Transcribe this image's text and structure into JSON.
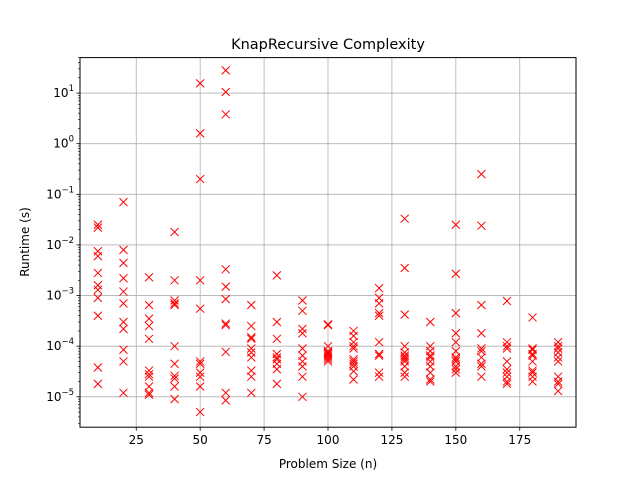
{
  "chart_data": {
    "type": "scatter",
    "title": "KnapRecursive Complexity",
    "xlabel": "Problem Size (n)",
    "ylabel": "Runtime (s)",
    "xlim": [
      3,
      197
    ],
    "ylim_log10": [
      -5.6,
      1.7
    ],
    "yscale": "log",
    "grid": true,
    "marker": "x",
    "marker_color": "#ff0000",
    "x_ticks": [
      25,
      50,
      75,
      100,
      125,
      150,
      175
    ],
    "x_tick_labels": [
      "25",
      "50",
      "75",
      "100",
      "125",
      "150",
      "175"
    ],
    "y_ticks": [
      {
        "base": "10",
        "exp": "−5",
        "value": 1e-05
      },
      {
        "base": "10",
        "exp": "−4",
        "value": 0.0001
      },
      {
        "base": "10",
        "exp": "−3",
        "value": 0.001
      },
      {
        "base": "10",
        "exp": "−2",
        "value": 0.01
      },
      {
        "base": "10",
        "exp": "−1",
        "value": 0.1
      },
      {
        "base": "10",
        "exp": "0",
        "value": 1
      },
      {
        "base": "10",
        "exp": "1",
        "value": 10
      }
    ],
    "points": [
      [
        10,
        0.025
      ],
      [
        10,
        0.022
      ],
      [
        10,
        0.0075
      ],
      [
        10,
        0.006
      ],
      [
        10,
        0.0028
      ],
      [
        10,
        0.0016
      ],
      [
        10,
        0.0013
      ],
      [
        10,
        0.0009
      ],
      [
        10,
        0.0004
      ],
      [
        10,
        3.8e-05
      ],
      [
        10,
        1.8e-05
      ],
      [
        20,
        0.07
      ],
      [
        20,
        0.008
      ],
      [
        20,
        0.0044
      ],
      [
        20,
        0.0022
      ],
      [
        20,
        0.0012
      ],
      [
        20,
        0.0007
      ],
      [
        20,
        0.0003
      ],
      [
        20,
        0.00022
      ],
      [
        20,
        8.5e-05
      ],
      [
        20,
        5e-05
      ],
      [
        20,
        1.2e-05
      ],
      [
        30,
        0.0023
      ],
      [
        30,
        0.00065
      ],
      [
        30,
        0.00035
      ],
      [
        30,
        0.00025
      ],
      [
        30,
        0.00014
      ],
      [
        30,
        3.3e-05
      ],
      [
        30,
        2.8e-05
      ],
      [
        30,
        2.5e-05
      ],
      [
        30,
        1.6e-05
      ],
      [
        30,
        1.2e-05
      ],
      [
        30,
        1.1e-05
      ],
      [
        40,
        0.018
      ],
      [
        40,
        0.002
      ],
      [
        40,
        0.0008
      ],
      [
        40,
        0.0007
      ],
      [
        40,
        0.00065
      ],
      [
        40,
        0.0001
      ],
      [
        40,
        4.5e-05
      ],
      [
        40,
        2.6e-05
      ],
      [
        40,
        2.3e-05
      ],
      [
        40,
        1.6e-05
      ],
      [
        40,
        9e-06
      ],
      [
        50,
        15.5
      ],
      [
        50,
        1.6
      ],
      [
        50,
        0.2
      ],
      [
        50,
        0.002
      ],
      [
        50,
        0.00055
      ],
      [
        50,
        5e-05
      ],
      [
        50,
        4.5e-05
      ],
      [
        50,
        3e-05
      ],
      [
        50,
        2.5e-05
      ],
      [
        50,
        1.6e-05
      ],
      [
        50,
        5e-06
      ],
      [
        60,
        28
      ],
      [
        60,
        10.5
      ],
      [
        60,
        3.8
      ],
      [
        60,
        0.0033
      ],
      [
        60,
        0.0015
      ],
      [
        60,
        0.00085
      ],
      [
        60,
        0.00028
      ],
      [
        60,
        0.00026
      ],
      [
        60,
        7.7e-05
      ],
      [
        60,
        1.2e-05
      ],
      [
        60,
        8.5e-06
      ],
      [
        70,
        0.00065
      ],
      [
        70,
        0.00025
      ],
      [
        70,
        0.00015
      ],
      [
        70,
        0.00014
      ],
      [
        70,
        9e-05
      ],
      [
        70,
        7.5e-05
      ],
      [
        70,
        6e-05
      ],
      [
        70,
        3.3e-05
      ],
      [
        70,
        2.5e-05
      ],
      [
        70,
        1.2e-05
      ],
      [
        80,
        0.0025
      ],
      [
        80,
        0.0003
      ],
      [
        80,
        0.00014
      ],
      [
        80,
        7e-05
      ],
      [
        80,
        6e-05
      ],
      [
        80,
        5.5e-05
      ],
      [
        80,
        4.5e-05
      ],
      [
        80,
        3.5e-05
      ],
      [
        80,
        1.8e-05
      ],
      [
        90,
        0.0008
      ],
      [
        90,
        0.0005
      ],
      [
        90,
        0.00022
      ],
      [
        90,
        0.00018
      ],
      [
        90,
        9e-05
      ],
      [
        90,
        6.5e-05
      ],
      [
        90,
        5e-05
      ],
      [
        90,
        4e-05
      ],
      [
        90,
        2.5e-05
      ],
      [
        90,
        1e-05
      ],
      [
        100,
        0.00027
      ],
      [
        100,
        0.00026
      ],
      [
        100,
        0.0001
      ],
      [
        100,
        8e-05
      ],
      [
        100,
        7.5e-05
      ],
      [
        100,
        7e-05
      ],
      [
        100,
        6.5e-05
      ],
      [
        100,
        6e-05
      ],
      [
        100,
        5.5e-05
      ],
      [
        100,
        5e-05
      ],
      [
        110,
        0.0002
      ],
      [
        110,
        0.00016
      ],
      [
        110,
        0.00012
      ],
      [
        110,
        0.0001
      ],
      [
        110,
        9e-05
      ],
      [
        110,
        5.5e-05
      ],
      [
        110,
        5e-05
      ],
      [
        110,
        4.5e-05
      ],
      [
        110,
        4e-05
      ],
      [
        110,
        3.2e-05
      ],
      [
        110,
        2.2e-05
      ],
      [
        120,
        0.0014
      ],
      [
        120,
        0.0009
      ],
      [
        120,
        0.0007
      ],
      [
        120,
        0.00045
      ],
      [
        120,
        0.0004
      ],
      [
        120,
        0.00012
      ],
      [
        120,
        7e-05
      ],
      [
        120,
        6.5e-05
      ],
      [
        120,
        3e-05
      ],
      [
        120,
        2.5e-05
      ],
      [
        130,
        0.033
      ],
      [
        130,
        0.0035
      ],
      [
        130,
        0.00042
      ],
      [
        130,
        0.0001
      ],
      [
        130,
        7.5e-05
      ],
      [
        130,
        6.5e-05
      ],
      [
        130,
        6e-05
      ],
      [
        130,
        5.5e-05
      ],
      [
        130,
        5e-05
      ],
      [
        130,
        4e-05
      ],
      [
        130,
        3e-05
      ],
      [
        130,
        2.5e-05
      ],
      [
        140,
        0.0003
      ],
      [
        140,
        0.0001
      ],
      [
        140,
        8e-05
      ],
      [
        140,
        6.5e-05
      ],
      [
        140,
        6e-05
      ],
      [
        140,
        5e-05
      ],
      [
        140,
        4e-05
      ],
      [
        140,
        3e-05
      ],
      [
        140,
        2.2e-05
      ],
      [
        140,
        2e-05
      ],
      [
        150,
        0.025
      ],
      [
        150,
        0.0027
      ],
      [
        150,
        0.00045
      ],
      [
        150,
        0.00018
      ],
      [
        150,
        0.00012
      ],
      [
        150,
        8e-05
      ],
      [
        150,
        6e-05
      ],
      [
        150,
        5.5e-05
      ],
      [
        150,
        5e-05
      ],
      [
        150,
        4e-05
      ],
      [
        150,
        3.5e-05
      ],
      [
        150,
        3e-05
      ],
      [
        160,
        0.25
      ],
      [
        160,
        0.024
      ],
      [
        160,
        0.00065
      ],
      [
        160,
        0.00018
      ],
      [
        160,
        9e-05
      ],
      [
        160,
        8e-05
      ],
      [
        160,
        6e-05
      ],
      [
        160,
        4.5e-05
      ],
      [
        160,
        4e-05
      ],
      [
        160,
        2.5e-05
      ],
      [
        170,
        0.00078
      ],
      [
        170,
        0.00012
      ],
      [
        170,
        0.0001
      ],
      [
        170,
        9e-05
      ],
      [
        170,
        5e-05
      ],
      [
        170,
        3.5e-05
      ],
      [
        170,
        3e-05
      ],
      [
        170,
        2.5e-05
      ],
      [
        170,
        2e-05
      ],
      [
        170,
        1.8e-05
      ],
      [
        180,
        0.00037
      ],
      [
        180,
        9e-05
      ],
      [
        180,
        8.5e-05
      ],
      [
        180,
        7e-05
      ],
      [
        180,
        6.5e-05
      ],
      [
        180,
        5e-05
      ],
      [
        180,
        3.3e-05
      ],
      [
        180,
        3e-05
      ],
      [
        180,
        2.5e-05
      ],
      [
        180,
        2e-05
      ],
      [
        190,
        0.00012
      ],
      [
        190,
        0.0001
      ],
      [
        190,
        9e-05
      ],
      [
        190,
        7.5e-05
      ],
      [
        190,
        6e-05
      ],
      [
        190,
        5e-05
      ],
      [
        190,
        2.5e-05
      ],
      [
        190,
        2e-05
      ],
      [
        190,
        1.8e-05
      ],
      [
        190,
        1.3e-05
      ]
    ]
  }
}
